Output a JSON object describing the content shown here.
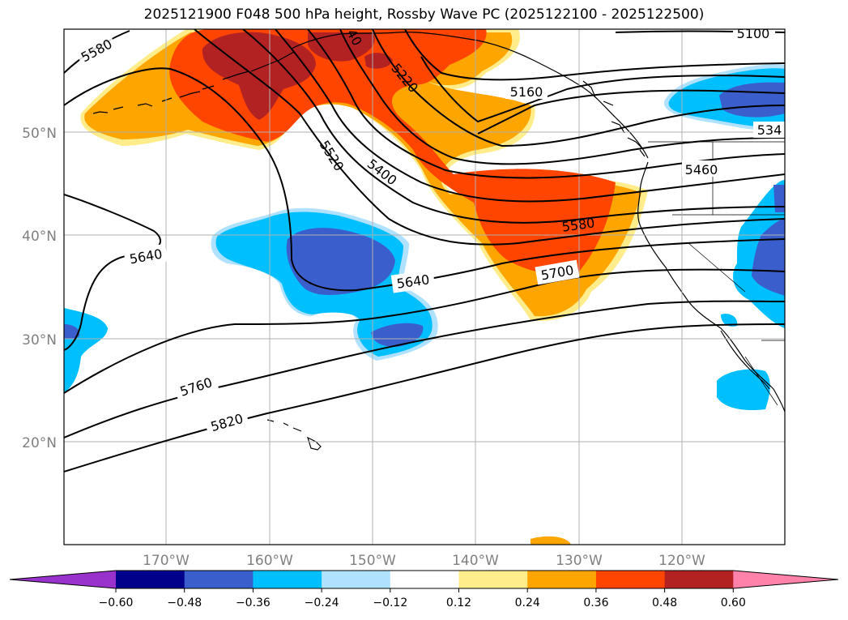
{
  "title": "2025121900 F048 500 hPa height, Rossby Wave PC (2025122100 - 2025122500)",
  "lat_labels": [
    "50°N",
    "40°N",
    "30°N",
    "20°N"
  ],
  "lon_labels": [
    "170°W",
    "160°W",
    "150°W",
    "140°W",
    "130°W",
    "120°W"
  ],
  "contour_labels": [
    "5580",
    "5520",
    "5400",
    "5220",
    "5160",
    "5100",
    "534",
    "5460",
    "5580",
    "5640",
    "5640",
    "5700",
    "5760",
    "5820",
    "40"
  ],
  "colorbar": {
    "ticks": [
      "−0.60",
      "−0.48",
      "−0.36",
      "−0.24",
      "−0.12",
      "0.12",
      "0.24",
      "0.36",
      "0.48",
      "0.60"
    ],
    "colors": [
      "#9932cc",
      "#00008b",
      "#3a5fcd",
      "#00bfff",
      "#b0e2ff",
      "#ffffff",
      "#ffec8b",
      "#ffa500",
      "#ff4500",
      "#b22222",
      "#ff82ab"
    ]
  },
  "fill_colors": {
    "neg_weak": "#b0e2ff",
    "neg_mid": "#00bfff",
    "neg_strong": "#3a5fcd",
    "pos_weak": "#ffec8b",
    "pos_mid": "#ffa500",
    "pos_strong": "#ff4500",
    "pos_max": "#b22222"
  }
}
